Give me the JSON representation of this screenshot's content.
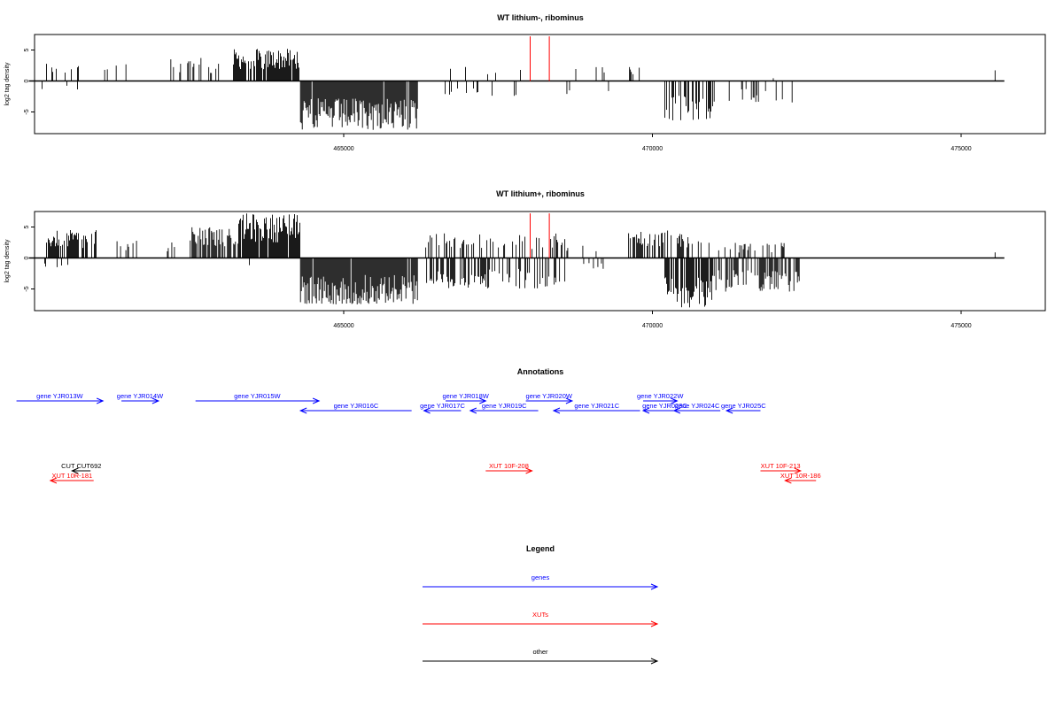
{
  "chart_data": [
    {
      "type": "bar",
      "title": "WT lithium-, ribominus",
      "xlabel": "",
      "ylabel": "log2 tag density",
      "xlim": [
        460000,
        476000
      ],
      "ylim": [
        -8.5,
        7.5
      ],
      "xticks": [
        465000,
        470000,
        475000
      ],
      "yticks": [
        -5,
        0,
        5
      ],
      "series": [
        {
          "strand": "+",
          "color": "#000000",
          "regions": [
            {
              "start": 460100,
              "end": 460800,
              "density": 0.25,
              "max": 3.0
            },
            {
              "start": 461100,
              "end": 461800,
              "density": 0.08,
              "max": 3.5
            },
            {
              "start": 462200,
              "end": 462700,
              "density": 0.35,
              "max": 4.0
            },
            {
              "start": 462800,
              "end": 463000,
              "density": 0.25,
              "max": 3.0
            },
            {
              "start": 463200,
              "end": 464300,
              "density": 0.85,
              "max": 5.2
            },
            {
              "start": 466500,
              "end": 467900,
              "density": 0.04,
              "max": 2.5
            },
            {
              "start": 468300,
              "end": 469300,
              "density": 0.05,
              "max": 2.3
            },
            {
              "start": 469600,
              "end": 469800,
              "density": 0.3,
              "max": 2.5
            },
            {
              "start": 471800,
              "end": 472300,
              "density": 0.1,
              "max": 0.8
            },
            {
              "start": 475550,
              "end": 475560,
              "density": 1.0,
              "max": 1.9
            }
          ]
        },
        {
          "strand": "-",
          "color": "#000000",
          "regions": [
            {
              "start": 460100,
              "end": 461000,
              "density": 0.05,
              "max": 1.4
            },
            {
              "start": 461500,
              "end": 461900,
              "density": 0.05,
              "max": 1.6
            },
            {
              "start": 462800,
              "end": 463000,
              "density": 0.05,
              "max": 1.5
            },
            {
              "start": 464300,
              "end": 466200,
              "density": 0.95,
              "max": 8.0
            },
            {
              "start": 466500,
              "end": 468000,
              "density": 0.1,
              "max": 2.5
            },
            {
              "start": 468500,
              "end": 469600,
              "density": 0.05,
              "max": 2.2
            },
            {
              "start": 470200,
              "end": 471000,
              "density": 0.45,
              "max": 6.5
            },
            {
              "start": 471000,
              "end": 472300,
              "density": 0.12,
              "max": 3.5
            }
          ]
        }
      ],
      "markers": [
        {
          "x": 468020,
          "y": 7.5,
          "color": "#ff0000"
        },
        {
          "x": 468330,
          "y": 7.5,
          "color": "#ff0000"
        }
      ]
    },
    {
      "type": "bar",
      "title": "WT lithium+, ribominus",
      "xlabel": "",
      "ylabel": "log2 tag density",
      "xlim": [
        460000,
        476000
      ],
      "ylim": [
        -8.5,
        7.5
      ],
      "xticks": [
        465000,
        470000,
        475000
      ],
      "yticks": [
        -5,
        0,
        5
      ],
      "series": [
        {
          "strand": "+",
          "color": "#000000",
          "regions": [
            {
              "start": 460100,
              "end": 461000,
              "density": 0.7,
              "max": 4.5
            },
            {
              "start": 461300,
              "end": 461800,
              "density": 0.3,
              "max": 3.5
            },
            {
              "start": 461900,
              "end": 462300,
              "density": 0.25,
              "max": 3.0
            },
            {
              "start": 462500,
              "end": 463300,
              "density": 0.6,
              "max": 5.0
            },
            {
              "start": 463300,
              "end": 464300,
              "density": 0.95,
              "max": 7.2
            },
            {
              "start": 466300,
              "end": 468600,
              "density": 0.3,
              "max": 4.0
            },
            {
              "start": 468600,
              "end": 469300,
              "density": 0.08,
              "max": 2.5
            },
            {
              "start": 469600,
              "end": 470600,
              "density": 0.45,
              "max": 4.5
            },
            {
              "start": 470600,
              "end": 471300,
              "density": 0.2,
              "max": 3.5
            },
            {
              "start": 471300,
              "end": 472300,
              "density": 0.25,
              "max": 2.5
            },
            {
              "start": 475550,
              "end": 475560,
              "density": 1.0,
              "max": 1.8
            }
          ]
        },
        {
          "strand": "-",
          "color": "#000000",
          "regions": [
            {
              "start": 460100,
              "end": 461000,
              "density": 0.05,
              "max": 1.5
            },
            {
              "start": 463400,
              "end": 463500,
              "density": 0.3,
              "max": 2.0
            },
            {
              "start": 464300,
              "end": 466200,
              "density": 0.95,
              "max": 7.5
            },
            {
              "start": 466300,
              "end": 468600,
              "density": 0.5,
              "max": 5.0
            },
            {
              "start": 468600,
              "end": 469300,
              "density": 0.08,
              "max": 2.3
            },
            {
              "start": 470200,
              "end": 471000,
              "density": 0.75,
              "max": 8.0
            },
            {
              "start": 471000,
              "end": 472400,
              "density": 0.55,
              "max": 5.5
            }
          ]
        }
      ],
      "markers": [
        {
          "x": 468020,
          "y": 7.5,
          "color": "#ff0000"
        },
        {
          "x": 468330,
          "y": 7.5,
          "color": "#ff0000"
        }
      ]
    }
  ],
  "annotations": {
    "title": "Annotations",
    "xlim": [
      460000,
      476000
    ],
    "genes_color": "#0000ff",
    "xut_color": "#ff0000",
    "other_color": "#000000",
    "features": [
      {
        "label": "gene YJR013W",
        "start": 459700,
        "end": 461100,
        "strand": "+",
        "row": 0,
        "kind": "gene"
      },
      {
        "label": "gene YJR014W",
        "start": 461400,
        "end": 462000,
        "strand": "+",
        "row": 0,
        "kind": "gene"
      },
      {
        "label": "gene YJR015W",
        "start": 462600,
        "end": 464600,
        "strand": "+",
        "row": 0,
        "kind": "gene"
      },
      {
        "label": "gene YJR016C",
        "start": 464300,
        "end": 466100,
        "strand": "-",
        "row": 1,
        "kind": "gene"
      },
      {
        "label": "gene YJR017C",
        "start": 466300,
        "end": 466900,
        "strand": "-",
        "row": 1,
        "kind": "gene"
      },
      {
        "label": "gene YJR018W",
        "start": 466650,
        "end": 467300,
        "strand": "+",
        "row": 0,
        "kind": "gene"
      },
      {
        "label": "gene YJR019C",
        "start": 467050,
        "end": 468150,
        "strand": "-",
        "row": 1,
        "kind": "gene"
      },
      {
        "label": "gene YJR020W",
        "start": 467950,
        "end": 468700,
        "strand": "+",
        "row": 0,
        "kind": "gene"
      },
      {
        "label": "gene YJR021C",
        "start": 468400,
        "end": 469800,
        "strand": "-",
        "row": 1,
        "kind": "gene"
      },
      {
        "label": "gene YJR022W",
        "start": 469850,
        "end": 470400,
        "strand": "+",
        "row": 0,
        "kind": "gene"
      },
      {
        "label": "gene YJR023C",
        "start": 469850,
        "end": 470550,
        "strand": "-",
        "row": 1,
        "kind": "gene"
      },
      {
        "label": "gene YJR024C",
        "start": 470350,
        "end": 471100,
        "strand": "-",
        "row": 1,
        "kind": "gene"
      },
      {
        "label": "gene YJR025C",
        "start": 471200,
        "end": 471750,
        "strand": "-",
        "row": 1,
        "kind": "gene"
      },
      {
        "label": "CUT CUT692",
        "start": 460600,
        "end": 460900,
        "strand": "-",
        "row": 4,
        "kind": "other"
      },
      {
        "label": "XUT 10R-181",
        "start": 460250,
        "end": 460950,
        "strand": "-",
        "row": 5,
        "kind": "xut"
      },
      {
        "label": "XUT 10F-208",
        "start": 467300,
        "end": 468050,
        "strand": "+",
        "row": 4,
        "kind": "xut"
      },
      {
        "label": "XUT 10F-213",
        "start": 471750,
        "end": 472400,
        "strand": "+",
        "row": 4,
        "kind": "xut"
      },
      {
        "label": "XUT 10R-186",
        "start": 472150,
        "end": 472650,
        "strand": "-",
        "row": 5,
        "kind": "xut"
      }
    ]
  },
  "legend": {
    "title": "Legend",
    "items": [
      {
        "label": "genes",
        "color": "#0000ff"
      },
      {
        "label": "XUTs",
        "color": "#ff0000"
      },
      {
        "label": "other",
        "color": "#000000"
      }
    ]
  }
}
